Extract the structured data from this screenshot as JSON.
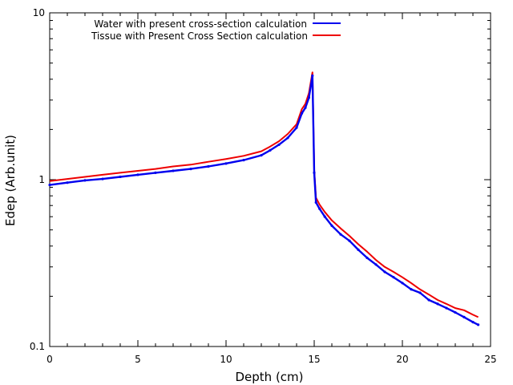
{
  "chart_data": {
    "type": "line",
    "title": "",
    "xlabel": "Depth (cm)",
    "ylabel": "Edep (Arb.unit)",
    "xlim": [
      0,
      25
    ],
    "ylim": [
      0.1,
      10
    ],
    "yscale": "log",
    "grid": false,
    "legend_position": "top-left",
    "x_ticks": [
      0,
      5,
      10,
      15,
      20,
      25
    ],
    "x_tick_labels": [
      "0",
      "5",
      "10",
      "15",
      "20",
      "25"
    ],
    "y_ticks": [
      0.1,
      1,
      10
    ],
    "y_tick_labels": [
      "0.1",
      "1",
      "10"
    ],
    "series": [
      {
        "name": "Water with present cross-section calculation",
        "color": "#0000ee",
        "marker": "dot",
        "x": [
          0,
          1,
          2,
          3,
          4,
          5,
          6,
          7,
          8,
          9,
          10,
          11,
          12,
          12.5,
          13,
          13.5,
          14,
          14.3,
          14.5,
          14.7,
          14.9,
          15.0,
          15.1,
          15.3,
          15.6,
          16,
          16.5,
          17,
          17.5,
          18,
          18.5,
          19,
          19.5,
          20,
          20.5,
          21,
          21.5,
          22,
          22.5,
          23,
          23.5,
          24,
          24.3
        ],
        "values": [
          0.93,
          0.96,
          0.99,
          1.01,
          1.04,
          1.07,
          1.1,
          1.13,
          1.16,
          1.2,
          1.25,
          1.31,
          1.4,
          1.5,
          1.62,
          1.78,
          2.05,
          2.5,
          2.7,
          3.1,
          4.2,
          1.1,
          0.73,
          0.67,
          0.6,
          0.53,
          0.47,
          0.43,
          0.38,
          0.34,
          0.31,
          0.28,
          0.26,
          0.24,
          0.22,
          0.21,
          0.19,
          0.18,
          0.17,
          0.16,
          0.15,
          0.14,
          0.135
        ]
      },
      {
        "name": "Tissue with Present Cross Section calculation",
        "color": "#ee0000",
        "marker": "none",
        "x": [
          0,
          1,
          2,
          3,
          4,
          5,
          6,
          7,
          8,
          9,
          10,
          11,
          12,
          12.5,
          13,
          13.5,
          14,
          14.3,
          14.5,
          14.7,
          14.9,
          15.0,
          15.1,
          15.3,
          15.6,
          16,
          16.5,
          17,
          17.5,
          18,
          18.5,
          19,
          19.5,
          20,
          20.5,
          21,
          21.5,
          22,
          22.5,
          23,
          23.5,
          24,
          24.3
        ],
        "values": [
          0.98,
          1.01,
          1.04,
          1.07,
          1.1,
          1.13,
          1.16,
          1.2,
          1.23,
          1.28,
          1.33,
          1.39,
          1.48,
          1.58,
          1.7,
          1.88,
          2.15,
          2.65,
          2.85,
          3.3,
          4.4,
          1.15,
          0.78,
          0.71,
          0.64,
          0.57,
          0.51,
          0.46,
          0.41,
          0.37,
          0.33,
          0.3,
          0.28,
          0.26,
          0.24,
          0.22,
          0.205,
          0.19,
          0.18,
          0.17,
          0.165,
          0.155,
          0.15
        ]
      }
    ]
  }
}
